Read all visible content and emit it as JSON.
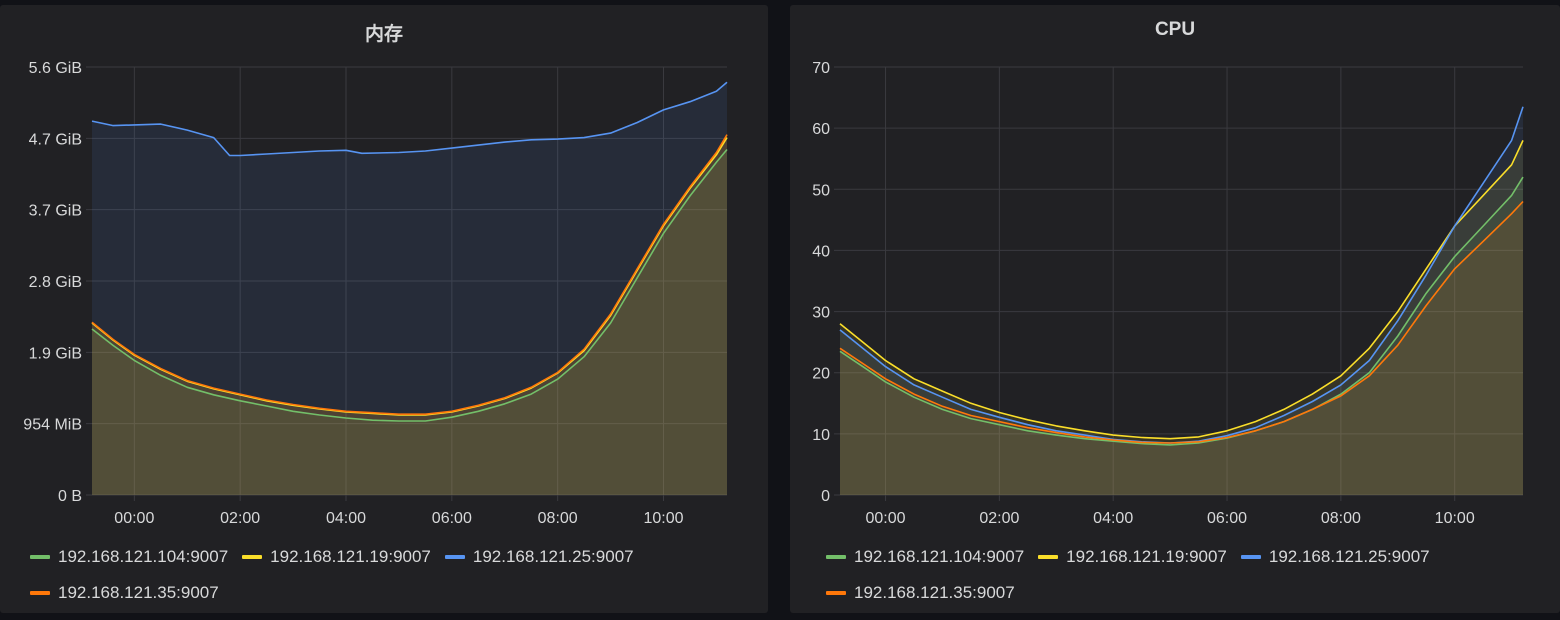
{
  "panels": [
    {
      "title": "内存",
      "chart_data": {
        "type": "area",
        "title": "内存",
        "x_ticks": [
          "00:00",
          "02:00",
          "04:00",
          "06:00",
          "08:00",
          "10:00"
        ],
        "x_range_hours": [
          -0.8,
          11.2
        ],
        "y_ticks": [
          {
            "value": 0,
            "label": "0 B"
          },
          {
            "value": 954,
            "label": "954 MiB"
          },
          {
            "value": 1908,
            "label": "1.9 GiB"
          },
          {
            "value": 2862,
            "label": "2.8 GiB"
          },
          {
            "value": 3816,
            "label": "3.7 GiB"
          },
          {
            "value": 4770,
            "label": "4.7 GiB"
          },
          {
            "value": 5724,
            "label": "5.6 GiB"
          }
        ],
        "y_unit": "MiB",
        "ylim": [
          0,
          5724
        ],
        "grid": true,
        "legend_position": "bottom",
        "series": [
          {
            "name": "192.168.121.104:9007",
            "color": "#73bf69",
            "points": [
              [
                -0.8,
                2220
              ],
              [
                -0.4,
                2000
              ],
              [
                0,
                1800
              ],
              [
                0.5,
                1600
              ],
              [
                1,
                1440
              ],
              [
                1.5,
                1340
              ],
              [
                2,
                1260
              ],
              [
                2.5,
                1190
              ],
              [
                3,
                1120
              ],
              [
                3.5,
                1070
              ],
              [
                4,
                1030
              ],
              [
                4.5,
                1000
              ],
              [
                5,
                990
              ],
              [
                5.5,
                990
              ],
              [
                6,
                1040
              ],
              [
                6.5,
                1120
              ],
              [
                7,
                1220
              ],
              [
                7.5,
                1350
              ],
              [
                8,
                1550
              ],
              [
                8.5,
                1850
              ],
              [
                9,
                2300
              ],
              [
                9.5,
                2900
              ],
              [
                10,
                3500
              ],
              [
                10.5,
                4000
              ],
              [
                11,
                4450
              ],
              [
                11.2,
                4620
              ]
            ]
          },
          {
            "name": "192.168.121.19:9007",
            "color": "#fade2a",
            "points": [
              [
                -0.8,
                2300
              ],
              [
                -0.4,
                2070
              ],
              [
                0,
                1870
              ],
              [
                0.5,
                1680
              ],
              [
                1,
                1520
              ],
              [
                1.5,
                1420
              ],
              [
                2,
                1340
              ],
              [
                2.5,
                1260
              ],
              [
                3,
                1200
              ],
              [
                3.5,
                1150
              ],
              [
                4,
                1110
              ],
              [
                4.5,
                1090
              ],
              [
                5,
                1070
              ],
              [
                5.5,
                1070
              ],
              [
                6,
                1110
              ],
              [
                6.5,
                1190
              ],
              [
                7,
                1290
              ],
              [
                7.5,
                1430
              ],
              [
                8,
                1630
              ],
              [
                8.5,
                1930
              ],
              [
                9,
                2400
              ],
              [
                9.5,
                3000
              ],
              [
                10,
                3600
              ],
              [
                10.5,
                4100
              ],
              [
                11,
                4550
              ],
              [
                11.2,
                4780
              ]
            ]
          },
          {
            "name": "192.168.121.25:9007",
            "color": "#5794f2",
            "points": [
              [
                -0.8,
                5000
              ],
              [
                -0.4,
                4940
              ],
              [
                0,
                4950
              ],
              [
                0.5,
                4960
              ],
              [
                1,
                4880
              ],
              [
                1.5,
                4780
              ],
              [
                1.8,
                4540
              ],
              [
                2,
                4540
              ],
              [
                2.5,
                4560
              ],
              [
                3,
                4580
              ],
              [
                3.5,
                4600
              ],
              [
                4,
                4610
              ],
              [
                4.3,
                4570
              ],
              [
                5,
                4580
              ],
              [
                5.5,
                4600
              ],
              [
                6,
                4640
              ],
              [
                6.5,
                4680
              ],
              [
                7,
                4720
              ],
              [
                7.5,
                4750
              ],
              [
                8,
                4760
              ],
              [
                8.5,
                4780
              ],
              [
                9,
                4840
              ],
              [
                9.5,
                4980
              ],
              [
                10,
                5150
              ],
              [
                10.5,
                5260
              ],
              [
                11,
                5400
              ],
              [
                11.2,
                5520
              ]
            ]
          },
          {
            "name": "192.168.121.35:9007",
            "color": "#ff780a",
            "points": [
              [
                -0.8,
                2310
              ],
              [
                -0.4,
                2080
              ],
              [
                0,
                1880
              ],
              [
                0.5,
                1690
              ],
              [
                1,
                1530
              ],
              [
                1.5,
                1430
              ],
              [
                2,
                1350
              ],
              [
                2.5,
                1270
              ],
              [
                3,
                1210
              ],
              [
                3.5,
                1160
              ],
              [
                4,
                1120
              ],
              [
                4.5,
                1100
              ],
              [
                5,
                1080
              ],
              [
                5.5,
                1080
              ],
              [
                6,
                1120
              ],
              [
                6.5,
                1200
              ],
              [
                7,
                1300
              ],
              [
                7.5,
                1440
              ],
              [
                8,
                1640
              ],
              [
                8.5,
                1950
              ],
              [
                9,
                2420
              ],
              [
                9.5,
                3020
              ],
              [
                10,
                3620
              ],
              [
                10.5,
                4120
              ],
              [
                11,
                4580
              ],
              [
                11.2,
                4820
              ]
            ]
          }
        ]
      }
    },
    {
      "title": "CPU",
      "chart_data": {
        "type": "area",
        "title": "CPU",
        "x_ticks": [
          "00:00",
          "02:00",
          "04:00",
          "06:00",
          "08:00",
          "10:00"
        ],
        "x_range_hours": [
          -0.8,
          11.2
        ],
        "y_ticks": [
          {
            "value": 0,
            "label": "0"
          },
          {
            "value": 10,
            "label": "10"
          },
          {
            "value": 20,
            "label": "20"
          },
          {
            "value": 30,
            "label": "30"
          },
          {
            "value": 40,
            "label": "40"
          },
          {
            "value": 50,
            "label": "50"
          },
          {
            "value": 60,
            "label": "60"
          },
          {
            "value": 70,
            "label": "70"
          }
        ],
        "ylim": [
          0,
          70
        ],
        "grid": true,
        "legend_position": "bottom",
        "series": [
          {
            "name": "192.168.121.104:9007",
            "color": "#73bf69",
            "points": [
              [
                -0.8,
                23.5
              ],
              [
                -0.4,
                21
              ],
              [
                0,
                18.5
              ],
              [
                0.5,
                16
              ],
              [
                1,
                14
              ],
              [
                1.5,
                12.5
              ],
              [
                2,
                11.5
              ],
              [
                2.5,
                10.5
              ],
              [
                3,
                9.8
              ],
              [
                3.5,
                9.2
              ],
              [
                4,
                8.8
              ],
              [
                4.5,
                8.4
              ],
              [
                5,
                8.2
              ],
              [
                5.5,
                8.5
              ],
              [
                6,
                9.3
              ],
              [
                6.5,
                10.5
              ],
              [
                7,
                12
              ],
              [
                7.5,
                14
              ],
              [
                8,
                16.5
              ],
              [
                8.5,
                20
              ],
              [
                9,
                26
              ],
              [
                9.5,
                33
              ],
              [
                10,
                39
              ],
              [
                10.5,
                44
              ],
              [
                11,
                49
              ],
              [
                11.2,
                52
              ]
            ]
          },
          {
            "name": "192.168.121.19:9007",
            "color": "#fade2a",
            "points": [
              [
                -0.8,
                28
              ],
              [
                -0.4,
                25
              ],
              [
                0,
                22
              ],
              [
                0.5,
                19
              ],
              [
                1,
                17
              ],
              [
                1.5,
                15
              ],
              [
                2,
                13.5
              ],
              [
                2.5,
                12.3
              ],
              [
                3,
                11.3
              ],
              [
                3.5,
                10.5
              ],
              [
                4,
                9.8
              ],
              [
                4.5,
                9.4
              ],
              [
                5,
                9.2
              ],
              [
                5.5,
                9.5
              ],
              [
                6,
                10.5
              ],
              [
                6.5,
                12
              ],
              [
                7,
                14
              ],
              [
                7.5,
                16.5
              ],
              [
                8,
                19.5
              ],
              [
                8.5,
                24
              ],
              [
                9,
                30
              ],
              [
                9.5,
                37
              ],
              [
                10,
                44
              ],
              [
                10.5,
                49
              ],
              [
                11,
                54
              ],
              [
                11.2,
                58
              ]
            ]
          },
          {
            "name": "192.168.121.25:9007",
            "color": "#5794f2",
            "points": [
              [
                -0.8,
                27
              ],
              [
                -0.4,
                24
              ],
              [
                0,
                21
              ],
              [
                0.5,
                18
              ],
              [
                1,
                16
              ],
              [
                1.5,
                14
              ],
              [
                2,
                12.7
              ],
              [
                2.5,
                11.5
              ],
              [
                3,
                10.5
              ],
              [
                3.5,
                9.8
              ],
              [
                4,
                9.1
              ],
              [
                4.5,
                8.7
              ],
              [
                5,
                8.5
              ],
              [
                5.5,
                8.8
              ],
              [
                6,
                9.7
              ],
              [
                6.5,
                11
              ],
              [
                7,
                13
              ],
              [
                7.5,
                15.3
              ],
              [
                8,
                18
              ],
              [
                8.5,
                22
              ],
              [
                9,
                28.5
              ],
              [
                9.5,
                36
              ],
              [
                10,
                44
              ],
              [
                10.5,
                51
              ],
              [
                11,
                58
              ],
              [
                11.2,
                63.5
              ]
            ]
          },
          {
            "name": "192.168.121.35:9007",
            "color": "#ff780a",
            "points": [
              [
                -0.8,
                24
              ],
              [
                -0.4,
                21.5
              ],
              [
                0,
                19
              ],
              [
                0.5,
                16.5
              ],
              [
                1,
                14.5
              ],
              [
                1.5,
                13
              ],
              [
                2,
                12
              ],
              [
                2.5,
                11
              ],
              [
                3,
                10.2
              ],
              [
                3.5,
                9.5
              ],
              [
                4,
                9
              ],
              [
                4.5,
                8.6
              ],
              [
                5,
                8.5
              ],
              [
                5.5,
                8.7
              ],
              [
                6,
                9.4
              ],
              [
                6.5,
                10.5
              ],
              [
                7,
                12
              ],
              [
                7.5,
                14
              ],
              [
                8,
                16.2
              ],
              [
                8.5,
                19.5
              ],
              [
                9,
                24.5
              ],
              [
                9.5,
                31
              ],
              [
                10,
                37
              ],
              [
                10.5,
                41.5
              ],
              [
                11,
                46
              ],
              [
                11.2,
                48
              ]
            ]
          }
        ]
      }
    }
  ]
}
